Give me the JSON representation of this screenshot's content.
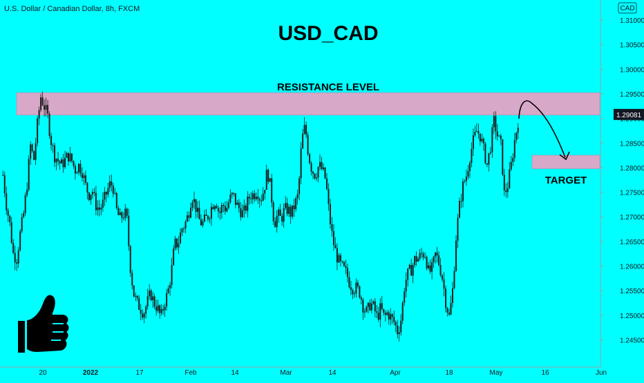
{
  "symbol_info": "U.S. Dollar / Canadian Dollar, 8h, FXCM",
  "currency_badge": "CAD",
  "price_badge": "1.29081",
  "colors": {
    "background": "#00ffff",
    "zone": "#d8a8c8",
    "zone_border": "#c090b0",
    "candle": "#1a1a1a",
    "price_badge_bg": "#131722",
    "price_badge_text": "#ffffff"
  },
  "chart_data": {
    "type": "candlestick",
    "title": "USD_CAD",
    "resistance_label": "RESISTANCE LEVEL",
    "target_label": "TARGET",
    "resistance_zone": [
      1.2907,
      1.2952
    ],
    "target_zone": [
      1.2798,
      1.2825
    ],
    "current_price": 1.29081,
    "ylim": [
      1.2415,
      1.3138
    ],
    "y_ticks": [
      "1.31000",
      "1.30500",
      "1.30000",
      "1.29500",
      "1.29000",
      "1.28500",
      "1.28000",
      "1.27500",
      "1.27000",
      "1.26500",
      "1.26000",
      "1.25500",
      "1.25000",
      "1.24500"
    ],
    "x_ticks": [
      "20",
      "2022",
      "17",
      "Feb",
      "14",
      "Mar",
      "14",
      "Apr",
      "18",
      "May",
      "16",
      "Jun"
    ],
    "close_path": [
      1.2785,
      1.2725,
      1.2685,
      1.2625,
      1.2615,
      1.2665,
      1.2705,
      1.2765,
      1.2845,
      1.2815,
      1.2885,
      1.2945,
      1.2925,
      1.2905,
      1.2855,
      1.2825,
      1.2815,
      1.2805,
      1.2815,
      1.2825,
      1.2815,
      1.2795,
      1.2805,
      1.2795,
      1.2765,
      1.2745,
      1.2755,
      1.2725,
      1.2715,
      1.2725,
      1.2745,
      1.2765,
      1.2765,
      1.2715,
      1.2695,
      1.2705,
      1.2705,
      1.2605,
      1.2545,
      1.2525,
      1.2515,
      1.2505,
      1.2525,
      1.2545,
      1.2525,
      1.2515,
      1.2495,
      1.2525,
      1.2545,
      1.2585,
      1.2645,
      1.2645,
      1.2675,
      1.2685,
      1.2705,
      1.2745,
      1.2725,
      1.2695,
      1.2685,
      1.2695,
      1.2705,
      1.2725,
      1.2735,
      1.2705,
      1.2725,
      1.2715,
      1.2735,
      1.2745,
      1.2725,
      1.2715,
      1.2705,
      1.2725,
      1.2745,
      1.2745,
      1.2755,
      1.2735,
      1.2755,
      1.2795,
      1.2755,
      1.2685,
      1.2705,
      1.2695,
      1.2715,
      1.2715,
      1.2705,
      1.2725,
      1.2745,
      1.2855,
      1.2885,
      1.2825,
      1.2795,
      1.2785,
      1.2805,
      1.2795,
      1.2775,
      1.2705,
      1.2655,
      1.2625,
      1.2605,
      1.2595,
      1.2585,
      1.2565,
      1.2555,
      1.2555,
      1.2545,
      1.2515,
      1.2505,
      1.2525,
      1.2515,
      1.2495,
      1.2515,
      1.2495,
      1.2505,
      1.2495,
      1.2485,
      1.2465,
      1.2495,
      1.2565,
      1.2585,
      1.2595,
      1.2615,
      1.2615,
      1.2625,
      1.2625,
      1.2585,
      1.2595,
      1.2625,
      1.2605,
      1.2575,
      1.2525,
      1.2495,
      1.2555,
      1.2665,
      1.2725,
      1.2765,
      1.2785,
      1.2825,
      1.2855,
      1.2875,
      1.2865,
      1.2835,
      1.2805,
      1.2845,
      1.2895,
      1.2865,
      1.2845,
      1.2745,
      1.2765,
      1.2805,
      1.2855,
      1.2895
    ],
    "annotations": [
      "curved-arrow from resistance zone down to target zone",
      "thumbs-up symbol"
    ]
  }
}
